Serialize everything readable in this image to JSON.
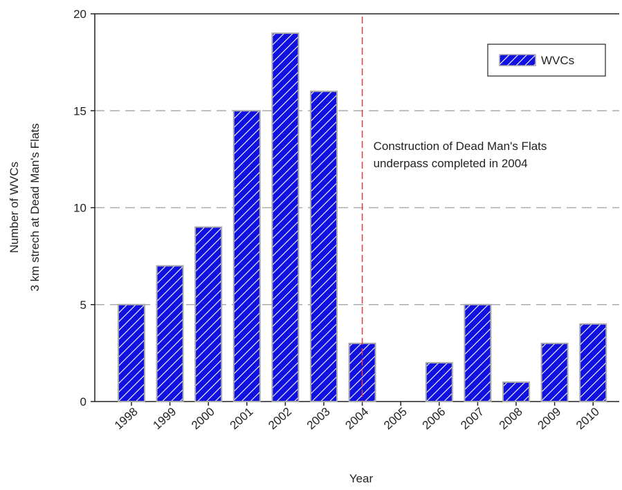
{
  "chart_data": {
    "type": "bar",
    "ylabel": [
      "Number of WVCs",
      "3 km strech at Dead Man's Flats"
    ],
    "xlabel": "Year",
    "categories": [
      "1998",
      "1999",
      "2000",
      "2001",
      "2002",
      "2003",
      "2004",
      "2005",
      "2006",
      "2007",
      "2008",
      "2009",
      "2010"
    ],
    "series": [
      {
        "name": "WVCs",
        "color": "#1010e0",
        "values": [
          5,
          7,
          9,
          15,
          19,
          16,
          3,
          0,
          2,
          5,
          1,
          3,
          4
        ]
      }
    ],
    "ylim": [
      0,
      20
    ],
    "yticks": [
      0,
      5,
      10,
      15,
      20
    ],
    "grid": true,
    "hatch": true,
    "legend": "upper right",
    "reference_line": {
      "at": "2004",
      "color": "#e03c3c"
    },
    "annotation": [
      "Construction of Dead Man's Flats",
      " underpass completed in 2004"
    ]
  }
}
